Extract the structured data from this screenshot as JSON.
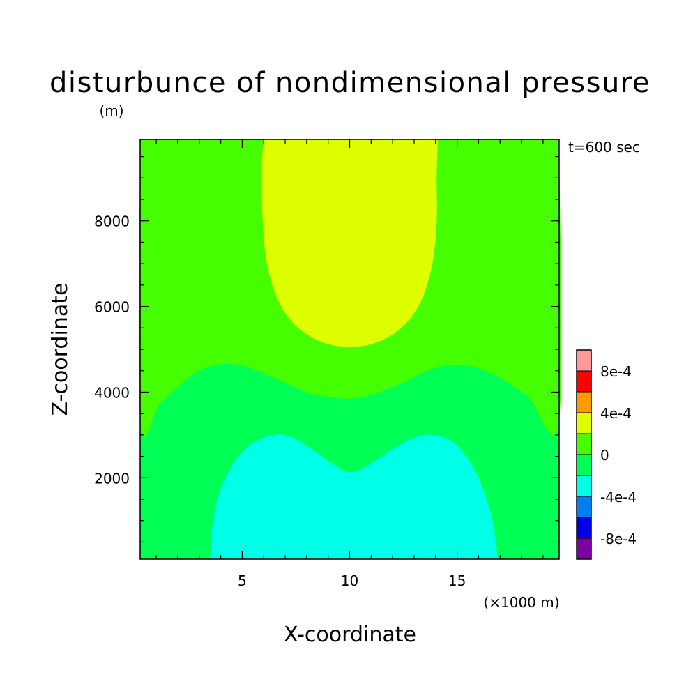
{
  "chart_data": {
    "type": "heatmap",
    "title": "disturbunce of nondimensional pressure",
    "title_unit": "(m)",
    "time_label": "t=600 sec",
    "xlabel": "X-coordinate",
    "xunit": "(×1000 m)",
    "ylabel": "Z-coordinate",
    "xlim": [
      0.25,
      19.75
    ],
    "ylim": [
      100,
      9900
    ],
    "x_ticks": [
      5,
      10,
      15
    ],
    "x_tick_labels": [
      "5",
      "10",
      "15"
    ],
    "y_ticks": [
      2000,
      4000,
      6000,
      8000
    ],
    "y_tick_labels": [
      "2000",
      "4000",
      "6000",
      "8000"
    ],
    "colorbar": {
      "levels": [
        -0.001,
        -0.0008,
        -0.0006,
        -0.0004,
        -0.0002,
        0,
        0.0002,
        0.0004,
        0.0006,
        0.0008,
        0.001
      ],
      "colors": [
        "#7f00a0",
        "#0000e6",
        "#0080f0",
        "#00ffe6",
        "#00ff55",
        "#45ff00",
        "#ddff00",
        "#ff9900",
        "#ff0000",
        "#ff9999"
      ],
      "tick_values": [
        -0.0008,
        -0.0004,
        0,
        0.0004,
        0.0008
      ],
      "tick_labels": [
        "-8e-4",
        "-4e-4",
        "0",
        "4e-4",
        "8e-4"
      ]
    },
    "regions": [
      {
        "name": "-4e-4 to -2e-4",
        "color": "#00ffe6",
        "points": [
          [
            3.5,
            100
          ],
          [
            3.7,
            1200
          ],
          [
            4.3,
            2100
          ],
          [
            5.3,
            2750
          ],
          [
            6.5,
            3000
          ],
          [
            7.5,
            2900
          ],
          [
            8.7,
            2500
          ],
          [
            9.6,
            2200
          ],
          [
            10.1,
            2130
          ],
          [
            10.7,
            2250
          ],
          [
            11.8,
            2600
          ],
          [
            12.8,
            2900
          ],
          [
            13.8,
            3000
          ],
          [
            14.9,
            2800
          ],
          [
            15.9,
            2100
          ],
          [
            16.6,
            1100
          ],
          [
            16.9,
            100
          ]
        ]
      },
      {
        "name": "0 to 2e-4",
        "color": "#45ff00",
        "points": [
          [
            0.25,
            9900
          ],
          [
            0.25,
            3350
          ],
          [
            1.2,
            3750
          ],
          [
            2.4,
            4300
          ],
          [
            3.3,
            4570
          ],
          [
            4.3,
            4660
          ],
          [
            5.3,
            4580
          ],
          [
            6.6,
            4300
          ],
          [
            8.1,
            3980
          ],
          [
            9.4,
            3870
          ],
          [
            10.1,
            3850
          ],
          [
            11.1,
            3950
          ],
          [
            12.4,
            4200
          ],
          [
            13.7,
            4520
          ],
          [
            14.7,
            4630
          ],
          [
            15.9,
            4570
          ],
          [
            17.1,
            4300
          ],
          [
            18.3,
            3900
          ],
          [
            19.75,
            3350
          ],
          [
            19.75,
            9900
          ]
        ]
      },
      {
        "name": "2e-4 to 4e-4",
        "color": "#ddff00",
        "points": [
          [
            6.0,
            9900
          ],
          [
            5.9,
            9200
          ],
          [
            5.95,
            8000
          ],
          [
            6.15,
            7000
          ],
          [
            6.7,
            6100
          ],
          [
            7.6,
            5500
          ],
          [
            8.8,
            5150
          ],
          [
            10.0,
            5060
          ],
          [
            11.2,
            5150
          ],
          [
            12.4,
            5500
          ],
          [
            13.3,
            6100
          ],
          [
            13.85,
            7000
          ],
          [
            14.05,
            8000
          ],
          [
            14.05,
            9000
          ],
          [
            14.1,
            9900
          ]
        ]
      }
    ]
  }
}
